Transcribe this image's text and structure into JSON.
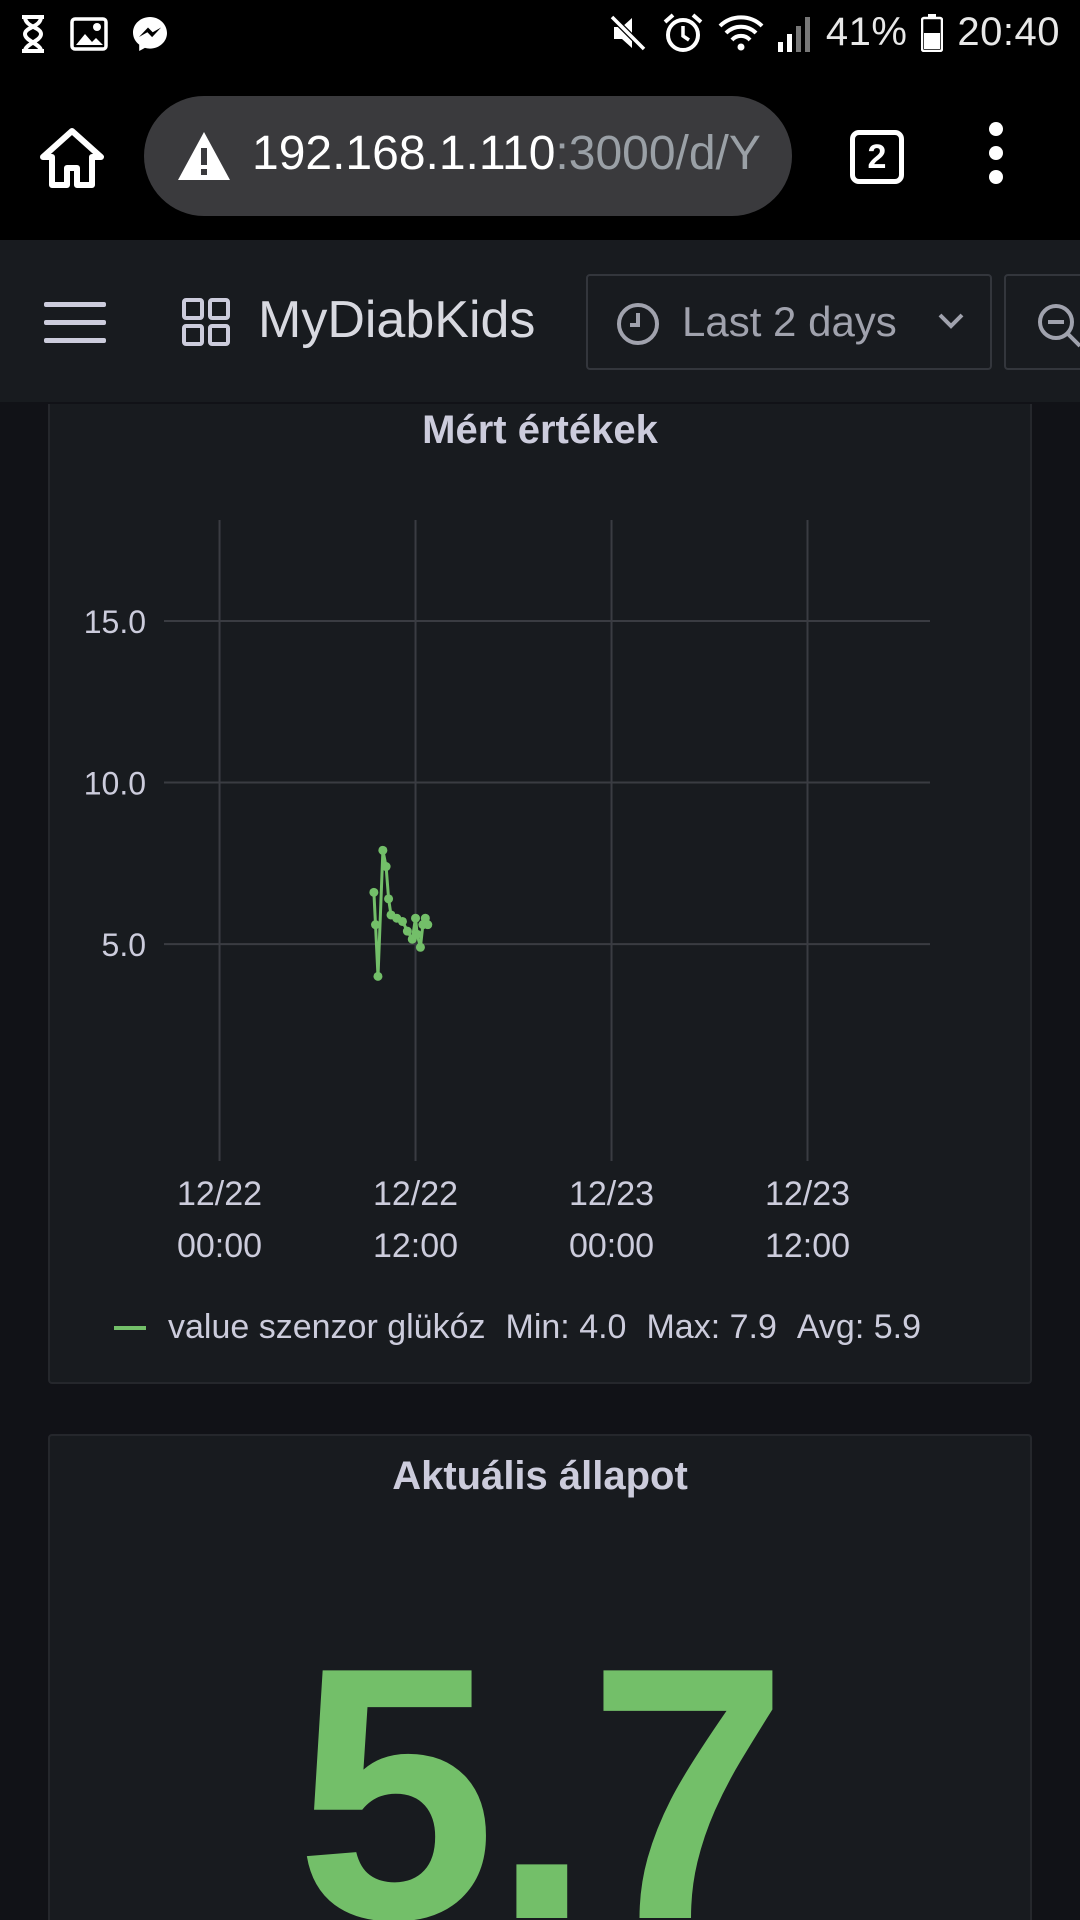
{
  "status_bar": {
    "battery_percent": "41%",
    "time": "20:40",
    "icons": [
      "hourglass-icon",
      "image-icon",
      "messenger-icon",
      "mute-icon",
      "alarm-icon",
      "wifi-icon",
      "signal-icon",
      "battery-icon"
    ]
  },
  "browser": {
    "url_host": "192.168.1.110",
    "url_path": ":3000/d/Y",
    "tab_count": "2",
    "icons": [
      "home-icon",
      "warning-icon",
      "tabs-icon",
      "more-vert-icon"
    ]
  },
  "nav": {
    "dashboard_title": "MyDiabKids",
    "time_range": "Last 2 days",
    "icons": [
      "menu-icon",
      "dashboard-grid-icon",
      "clock-icon",
      "chevron-down-icon",
      "zoom-out-icon"
    ]
  },
  "panel1": {
    "title": "Mért értékek",
    "legend": {
      "series": "value szenzor glükóz",
      "min": "Min: 4.0",
      "max": "Max: 7.9",
      "avg": "Avg: 5.9"
    }
  },
  "panel2": {
    "title": "Aktuális állapot",
    "value": "5.7"
  },
  "colors": {
    "series": "#73bf69",
    "panel_bg": "#181b1f",
    "page_bg": "#111217"
  },
  "chart_data": {
    "type": "line",
    "title": "Mért értékek",
    "xlabel": "",
    "ylabel": "",
    "x_tick_labels": [
      [
        "12/22",
        "00:00"
      ],
      [
        "12/22",
        "12:00"
      ],
      [
        "12/23",
        "00:00"
      ],
      [
        "12/23",
        "12:00"
      ]
    ],
    "x_tick_hours": [
      0,
      12,
      24,
      36
    ],
    "y_ticks": [
      5.0,
      10.0,
      15.0
    ],
    "y_tick_labels": [
      "5.0",
      "10.0",
      "15.0"
    ],
    "ylim": [
      2.0,
      18.0
    ],
    "xlim_hours": [
      -3.4,
      43.5
    ],
    "grid": true,
    "legend_position": "bottom",
    "series": [
      {
        "name": "value szenzor glükóz",
        "x_hours": [
          9.45,
          9.55,
          9.7,
          10.0,
          10.2,
          10.35,
          10.5,
          10.85,
          11.2,
          11.5,
          11.8,
          12.0,
          12.1,
          12.3,
          12.45,
          12.6,
          12.75
        ],
        "values": [
          6.6,
          5.6,
          4.0,
          7.9,
          7.4,
          6.4,
          5.9,
          5.8,
          5.7,
          5.4,
          5.15,
          5.8,
          5.3,
          4.9,
          5.6,
          5.8,
          5.6
        ]
      }
    ]
  }
}
